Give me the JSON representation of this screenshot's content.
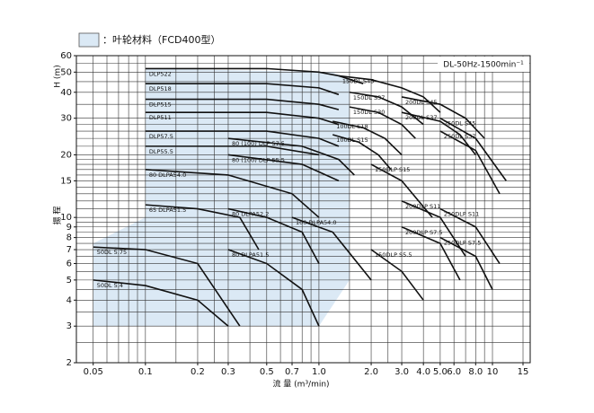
{
  "chart_data": {
    "type": "line",
    "legend_label": "：叶轮材料（FCD400型）",
    "legend_color": "#dbe9f5",
    "title": "DL-50Hz-1500min⁻¹",
    "x_label": "流 量 (m³/min)",
    "y_label": "H (m)",
    "y_label_2": "揚 程",
    "xscale": "log",
    "yscale": "log",
    "xlim": [
      0.04,
      16.5
    ],
    "ylim": [
      2,
      60
    ],
    "xticks": [
      0.05,
      0.1,
      0.2,
      0.3,
      0.5,
      0.7,
      {
        "value": 1,
        "label": "1.0"
      },
      {
        "value": 2,
        "label": "2.0"
      },
      {
        "value": 3,
        "label": "3.0"
      },
      {
        "value": 4,
        "label": "4.0"
      },
      {
        "value": 5,
        "label": "5.0"
      },
      {
        "value": 6,
        "label": "6.0"
      },
      {
        "value": 8,
        "label": "8.0"
      },
      10,
      15
    ],
    "yticks": [
      2,
      3,
      4,
      5,
      6,
      7,
      8,
      9,
      10,
      15,
      20,
      30,
      40,
      50,
      60
    ],
    "xgrid": [
      0.05,
      0.06,
      0.07,
      0.08,
      0.09,
      0.1,
      0.15,
      0.2,
      0.25,
      0.3,
      0.4,
      0.5,
      0.6,
      0.7,
      0.8,
      0.9,
      1,
      1.5,
      2,
      2.5,
      3,
      4,
      5,
      6,
      7,
      8,
      9,
      10,
      15
    ],
    "ygrid": [
      2,
      2.5,
      3,
      3.5,
      4,
      4.5,
      5,
      5.5,
      6,
      6.5,
      7,
      7.5,
      8,
      8.5,
      9,
      9.5,
      10,
      11,
      12,
      13,
      14,
      15,
      16,
      17,
      18,
      19,
      20,
      22,
      24,
      26,
      28,
      30,
      35,
      40,
      45,
      50,
      55,
      60
    ],
    "grid": true,
    "region": {
      "x": [
        0.05,
        0.05,
        0.1,
        0.1,
        1.2,
        1.5,
        1.5,
        1.0,
        0.8
      ],
      "y": [
        3,
        7.5,
        10,
        52,
        50,
        46,
        5,
        3,
        3
      ]
    },
    "line_color": "#111111",
    "series": [
      {
        "name": "DLP522",
        "x": [
          0.1,
          0.5,
          1,
          1.3,
          1.8
        ],
        "y": [
          52,
          52,
          50,
          48,
          44
        ]
      },
      {
        "name": "DLP518",
        "x": [
          0.1,
          0.5,
          1,
          1.3
        ],
        "y": [
          44,
          44,
          42,
          39
        ]
      },
      {
        "name": "DLP515",
        "x": [
          0.1,
          0.5,
          1,
          1.3
        ],
        "y": [
          37,
          37,
          35,
          33
        ]
      },
      {
        "name": "DLP511",
        "x": [
          0.1,
          0.5,
          1,
          1.3
        ],
        "y": [
          32,
          32,
          30,
          28
        ]
      },
      {
        "name": "DLP57.5",
        "x": [
          0.1,
          0.5,
          1,
          1.3
        ],
        "y": [
          26,
          26,
          24,
          22
        ]
      },
      {
        "name": "DLP55.5",
        "x": [
          0.1,
          0.5,
          1
        ],
        "y": [
          22,
          22,
          20
        ]
      },
      {
        "name": "80 (100) DLP 57.5",
        "x": [
          0.3,
          0.8,
          1.3,
          1.6
        ],
        "y": [
          24,
          22,
          19,
          16
        ]
      },
      {
        "name": "80 (100) DLP 55.5",
        "x": [
          0.3,
          0.8,
          1.3
        ],
        "y": [
          20,
          18,
          15
        ]
      },
      {
        "name": "80 DLPA54.0",
        "x": [
          0.1,
          0.3,
          0.7,
          1.0
        ],
        "y": [
          17,
          16,
          13,
          10
        ]
      },
      {
        "name": "65 DLPA51.5",
        "x": [
          0.1,
          0.2,
          0.35,
          0.45
        ],
        "y": [
          11.5,
          11,
          10,
          7
        ]
      },
      {
        "name": "80 DLPA52.2",
        "x": [
          0.3,
          0.5,
          0.8,
          1.0
        ],
        "y": [
          11,
          10,
          8.5,
          6
        ]
      },
      {
        "name": "100 DLPA54.0",
        "x": [
          0.7,
          1.2,
          2.0
        ],
        "y": [
          10,
          8.5,
          5
        ]
      },
      {
        "name": "80 DLPA51.5",
        "x": [
          0.3,
          0.5,
          0.8,
          1.0
        ],
        "y": [
          7,
          6,
          4.5,
          3
        ]
      },
      {
        "name": "50DL 5.75",
        "x": [
          0.05,
          0.1,
          0.2,
          0.35
        ],
        "y": [
          7.2,
          7,
          6,
          3
        ]
      },
      {
        "name": "50DL 5.4",
        "x": [
          0.05,
          0.1,
          0.2,
          0.3
        ],
        "y": [
          5,
          4.7,
          4,
          3
        ]
      },
      {
        "name": "150DL S45",
        "x": [
          1.3,
          2,
          3,
          4,
          5
        ],
        "y": [
          48,
          46,
          42,
          38,
          32
        ]
      },
      {
        "name": "150DL S37",
        "x": [
          1.5,
          2.2,
          3,
          4
        ],
        "y": [
          40,
          38,
          34,
          28
        ]
      },
      {
        "name": "150DL S30",
        "x": [
          1.5,
          2.2,
          3,
          3.6
        ],
        "y": [
          34,
          32,
          28,
          24
        ]
      },
      {
        "name": "100DL S18",
        "x": [
          1.2,
          1.8,
          2.4,
          3
        ],
        "y": [
          29,
          27,
          24,
          20
        ]
      },
      {
        "name": "100DL S15",
        "x": [
          1.2,
          1.7,
          2.2,
          2.6
        ],
        "y": [
          25,
          23,
          20,
          17
        ]
      },
      {
        "name": "200DL S45",
        "x": [
          3,
          5,
          7,
          9
        ],
        "y": [
          38,
          35,
          30,
          24
        ]
      },
      {
        "name": "200DL S37",
        "x": [
          3,
          5,
          6.5,
          8
        ],
        "y": [
          32,
          29,
          25,
          20
        ]
      },
      {
        "name": "250DL S45",
        "x": [
          5,
          8,
          12
        ],
        "y": [
          30,
          24,
          15
        ]
      },
      {
        "name": "250DL S37",
        "x": [
          5,
          8,
          11
        ],
        "y": [
          26,
          21,
          13
        ]
      },
      {
        "name": "150DLP S15",
        "x": [
          2,
          3,
          4.5
        ],
        "y": [
          18,
          15,
          10
        ]
      },
      {
        "name": "200DLP S11",
        "x": [
          3,
          5,
          7
        ],
        "y": [
          12,
          10,
          6.5
        ]
      },
      {
        "name": "200DLP S7.5",
        "x": [
          3,
          5,
          6.5
        ],
        "y": [
          9,
          7.5,
          5
        ]
      },
      {
        "name": "250DLP S11",
        "x": [
          5,
          8,
          11
        ],
        "y": [
          11,
          9,
          6
        ]
      },
      {
        "name": "250DLP S7.5",
        "x": [
          5,
          8,
          10
        ],
        "y": [
          8,
          6.5,
          4.5
        ]
      },
      {
        "name": "150DLP S5.5",
        "x": [
          2,
          3,
          4
        ],
        "y": [
          7,
          5.5,
          4
        ]
      }
    ]
  }
}
